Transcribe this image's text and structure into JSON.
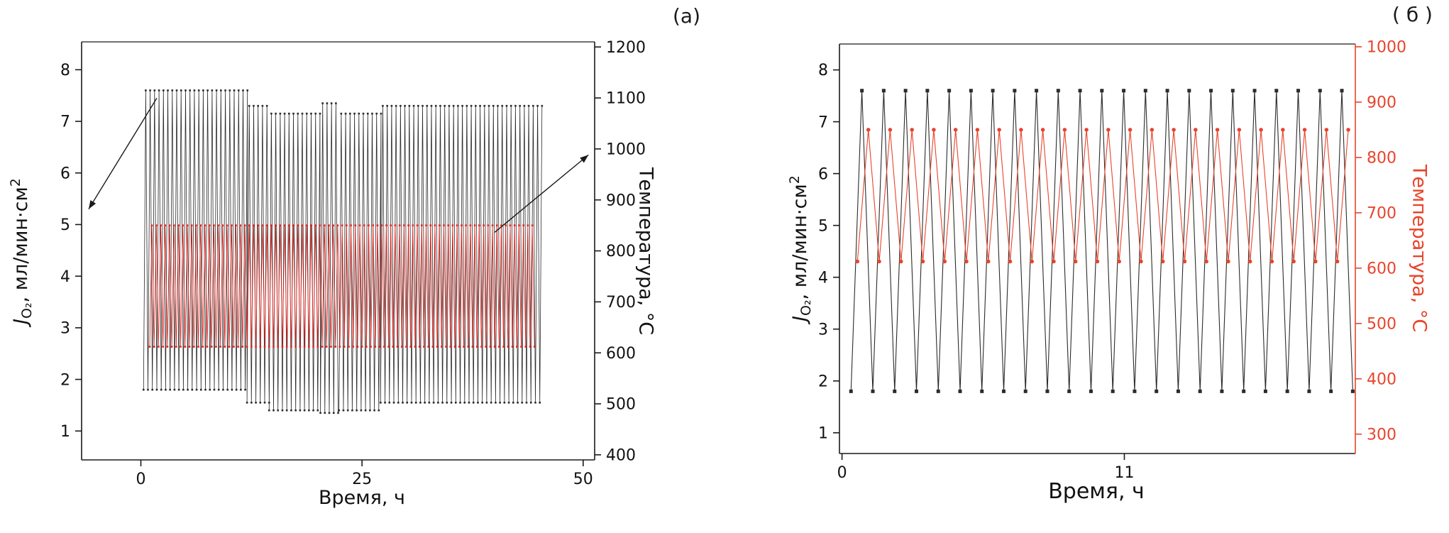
{
  "figure": {
    "background": "#ffffff",
    "accent_red": "#e8442c",
    "axis_black": "#1a1a1a"
  },
  "chart_data": [
    {
      "id": "panel-a",
      "type": "line",
      "title": "",
      "panel_label": "(a)",
      "xlabel": "Время, ч",
      "ylabel_left": "JO₂, мл/мин·см²",
      "ylabel_left_parts": {
        "symbol": "J",
        "symbol_sub": "O₂",
        "units": ", мл/мин·см",
        "units_sup": "2"
      },
      "ylabel_right": "Температура, °С",
      "axes": {
        "xlim": [
          -6.7,
          51.3
        ],
        "xticks": [
          0,
          25,
          50
        ],
        "ylim_left": [
          0.44,
          8.54
        ],
        "yticks_left": [
          1,
          2,
          3,
          4,
          5,
          6,
          7,
          8
        ],
        "ylim_right": [
          390,
          1210
        ],
        "yticks_right": [
          400,
          500,
          600,
          700,
          800,
          900,
          1000,
          1100,
          1200
        ],
        "grid": false,
        "axis_color": "#1a1a1a",
        "right_axis_color": "#1a1a1a",
        "right_tick_label_color": "#111111"
      },
      "series": [
        {
          "name": "oxygen-flux",
          "legend": "Jo2",
          "axis": "left",
          "color": "#2b2b2b",
          "marker": "square",
          "marker_size": 2.6,
          "line_width": 0.8,
          "waveform": "zigzag",
          "period_h": 0.5,
          "segments": [
            {
              "t0": 0.3,
              "t1": 12.0,
              "low": 1.8,
              "high": 7.6
            },
            {
              "t0": 12.0,
              "t1": 14.5,
              "low": 1.55,
              "high": 7.3
            },
            {
              "t0": 14.5,
              "t1": 20.3,
              "low": 1.4,
              "high": 7.15
            },
            {
              "t0": 20.3,
              "t1": 22.4,
              "low": 1.35,
              "high": 7.35
            },
            {
              "t0": 22.4,
              "t1": 27.1,
              "low": 1.4,
              "high": 7.15
            },
            {
              "t0": 27.1,
              "t1": 45.3,
              "low": 1.55,
              "high": 7.3
            }
          ]
        },
        {
          "name": "temperature",
          "legend": "Температура",
          "axis": "right",
          "color": "#e62019",
          "marker": "square",
          "marker_size": 2.6,
          "line_width": 0.8,
          "waveform": "zigzag",
          "period_h": 0.5,
          "segments": [
            {
              "t0": 1.0,
              "t1": 44.6,
              "low": 612,
              "high": 850
            }
          ]
        }
      ],
      "annotations": [
        {
          "type": "arrow",
          "from": [
            1.8,
            7.45
          ],
          "to": [
            -5.9,
            5.3
          ]
        },
        {
          "type": "arrow",
          "from": [
            40.0,
            4.85
          ],
          "to": [
            50.6,
            6.35
          ]
        }
      ]
    },
    {
      "id": "panel-b",
      "type": "line",
      "title": "",
      "panel_label": "( б )",
      "xlabel": "Время, ч",
      "ylabel_left": "JO₂, мл/мин·см²",
      "ylabel_left_parts": {
        "symbol": "J",
        "symbol_sub": "O₂",
        "units": ", мл/мин·см",
        "units_sup": "2"
      },
      "ylabel_right": "Температура, °С",
      "axes": {
        "xlim": [
          -0.1,
          20
        ],
        "xticks": [
          0,
          11
        ],
        "ylim_left": [
          0.6,
          8.5
        ],
        "yticks_left": [
          1,
          2,
          3,
          4,
          5,
          6,
          7,
          8
        ],
        "ylim_right": [
          265,
          1005
        ],
        "yticks_right": [
          300,
          400,
          500,
          600,
          700,
          800,
          900,
          1000
        ],
        "grid": false,
        "axis_color": "#1a1a1a",
        "right_axis_color": "#e8442c",
        "right_tick_label_color": "#e8442c"
      },
      "series": [
        {
          "name": "oxygen-flux",
          "legend": "Jo2",
          "axis": "left",
          "color": "#2b2b2b",
          "marker": "square",
          "marker_size": 5,
          "line_width": 1.1,
          "waveform": "zigzag",
          "period_h": 0.85,
          "segments": [
            {
              "t0": 0.35,
              "t1": 19.75,
              "low": 1.8,
              "high": 7.6
            }
          ]
        },
        {
          "name": "temperature",
          "legend": "Температура",
          "axis": "right",
          "color": "#e8442c",
          "marker": "circle",
          "marker_size": 5.5,
          "line_width": 1.1,
          "waveform": "zigzag",
          "period_h": 0.85,
          "segments": [
            {
              "t0": 0.6,
              "t1": 19.9,
              "low": 612,
              "high": 850
            }
          ]
        }
      ],
      "annotations": []
    }
  ]
}
